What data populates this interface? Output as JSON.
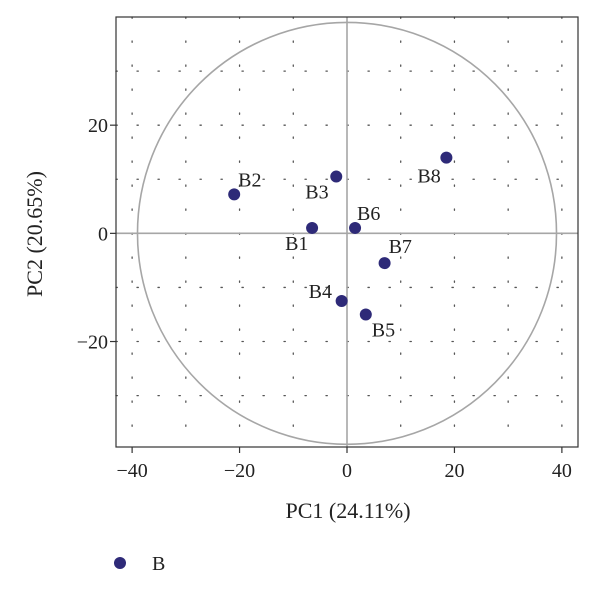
{
  "chart_data": {
    "type": "scatter",
    "title": "",
    "xlabel": "PC1 (24.11%)",
    "ylabel": "PC2 (20.65%)",
    "xlim": [
      -43,
      43
    ],
    "ylim": [
      -39.5,
      40
    ],
    "xticks": [
      -40,
      -20,
      0,
      20,
      40
    ],
    "xtick_labels": [
      "−40",
      "−20",
      "0",
      "20",
      "40"
    ],
    "yticks": [
      -20,
      0,
      20
    ],
    "ytick_labels": [
      "−20",
      "0",
      "20"
    ],
    "grid": "dotted",
    "reference_lines": {
      "x": 0,
      "y": 0
    },
    "confidence_circle_radius": 39,
    "series": [
      {
        "name": "B",
        "color": "#2e2a78",
        "points": [
          {
            "label": "B1",
            "x": -6.5,
            "y": 1.0
          },
          {
            "label": "B2",
            "x": -21.0,
            "y": 7.2
          },
          {
            "label": "B3",
            "x": -2.0,
            "y": 10.5
          },
          {
            "label": "B4",
            "x": -1.0,
            "y": -12.5
          },
          {
            "label": "B5",
            "x": 3.5,
            "y": -15.0
          },
          {
            "label": "B6",
            "x": 1.5,
            "y": 1.0
          },
          {
            "label": "B7",
            "x": 7.0,
            "y": -5.5
          },
          {
            "label": "B8",
            "x": 18.5,
            "y": 14.0
          }
        ]
      }
    ],
    "legend": {
      "position": "bottom-left",
      "entries": [
        "B"
      ]
    }
  }
}
